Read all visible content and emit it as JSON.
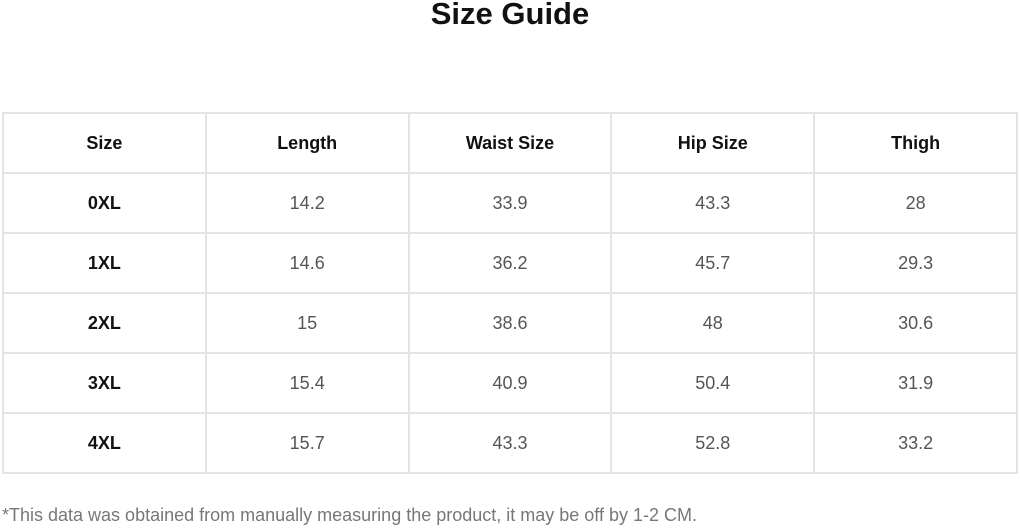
{
  "title": "Size Guide",
  "table": {
    "headers": [
      "Size",
      "Length",
      "Waist Size",
      "Hip Size",
      "Thigh"
    ],
    "rows": [
      [
        "0XL",
        "14.2",
        "33.9",
        "43.3",
        "28"
      ],
      [
        "1XL",
        "14.6",
        "36.2",
        "45.7",
        "29.3"
      ],
      [
        "2XL",
        "15",
        "38.6",
        "48",
        "30.6"
      ],
      [
        "3XL",
        "15.4",
        "40.9",
        "50.4",
        "31.9"
      ],
      [
        "4XL",
        "15.7",
        "43.3",
        "52.8",
        "33.2"
      ]
    ]
  },
  "note": "*This data was obtained from manually measuring the product, it may be off by 1-2 CM."
}
